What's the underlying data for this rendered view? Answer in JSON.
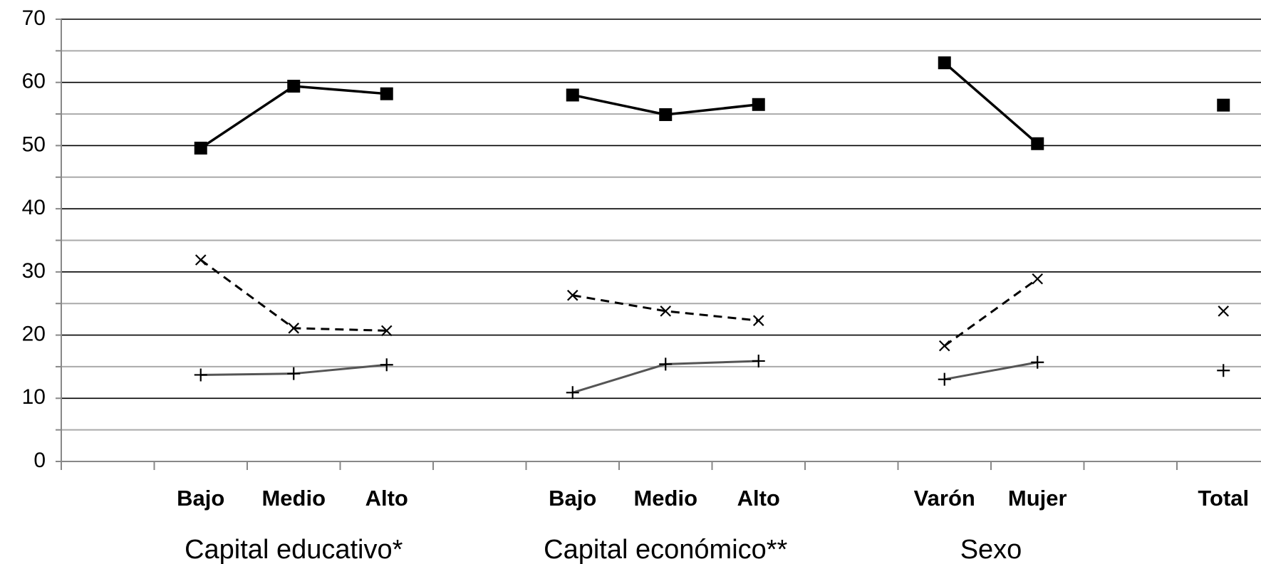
{
  "chart_data": {
    "type": "line",
    "categories": [
      null,
      "Bajo",
      "Medio",
      "Alto",
      null,
      "Bajo",
      "Medio",
      "Alto",
      null,
      "Varón",
      "Mujer",
      null,
      "Total"
    ],
    "group_labels": [
      "Capital educativo*",
      "Capital económico**",
      "Sexo"
    ],
    "series": [
      {
        "color": "#000000",
        "marker": "square",
        "line": "solid",
        "values": [
          null,
          49.6,
          59.4,
          58.2,
          null,
          58.0,
          54.9,
          56.5,
          null,
          63.1,
          50.3,
          null,
          56.4
        ]
      },
      {
        "color": "#000000",
        "marker": "x",
        "line": "dashed",
        "values": [
          null,
          31.9,
          21.1,
          20.7,
          null,
          26.3,
          23.8,
          22.3,
          null,
          18.3,
          28.9,
          null,
          23.8
        ]
      },
      {
        "color": "#555555",
        "marker": "plus",
        "line": "solid",
        "values": [
          null,
          13.7,
          13.9,
          15.3,
          null,
          10.9,
          15.4,
          15.9,
          null,
          13.0,
          15.7,
          null,
          14.4
        ]
      }
    ],
    "ylim": [
      0,
      70
    ],
    "yticks": [
      0,
      10,
      20,
      30,
      40,
      50,
      60,
      70
    ],
    "minor_gridlines": [
      5,
      15,
      25,
      35,
      45,
      55,
      65
    ],
    "grid": true
  }
}
